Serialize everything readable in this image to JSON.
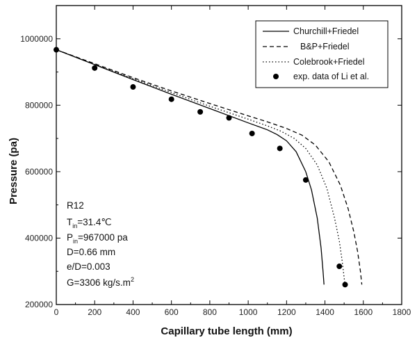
{
  "chart_data": {
    "type": "line",
    "title": "",
    "xlabel": "Capillary tube length (mm)",
    "ylabel": "Pressure (pa)",
    "xlim": [
      0,
      1800
    ],
    "ylim": [
      200000,
      1100000
    ],
    "x_ticks": [
      0,
      200,
      400,
      600,
      800,
      1000,
      1200,
      1400,
      1600,
      1800
    ],
    "y_ticks": [
      200000,
      400000,
      600000,
      800000,
      1000000
    ],
    "x_tick_labels": [
      "0",
      "200",
      "400",
      "600",
      "800",
      "1000",
      "1200",
      "1400",
      "1600",
      "1800"
    ],
    "y_tick_labels": [
      "200000",
      "400000",
      "600000",
      "800000",
      "1000000"
    ],
    "grid": false,
    "legend_position": "top-right",
    "series": [
      {
        "name": "Churchill+Friedel",
        "style": "solid",
        "x": [
          0,
          200,
          400,
          600,
          800,
          1000,
          1100,
          1150,
          1200,
          1250,
          1300,
          1330,
          1360,
          1380,
          1390,
          1395
        ],
        "y": [
          967000,
          922000,
          877000,
          833000,
          790000,
          747000,
          726000,
          712000,
          693000,
          660000,
          600000,
          545000,
          460000,
          370000,
          300000,
          260000
        ]
      },
      {
        "name": "B&P+Friedel",
        "style": "dashed",
        "x": [
          0,
          200,
          400,
          600,
          800,
          1000,
          1100,
          1200,
          1280,
          1350,
          1420,
          1480,
          1520,
          1550,
          1570,
          1585,
          1592
        ],
        "y": [
          967000,
          925000,
          883000,
          843000,
          805000,
          768000,
          750000,
          730000,
          710000,
          680000,
          630000,
          560000,
          490000,
          420000,
          360000,
          300000,
          260000
        ]
      },
      {
        "name": "Colebrook+Friedel",
        "style": "dotted",
        "x": [
          0,
          200,
          400,
          600,
          800,
          1000,
          1100,
          1170,
          1240,
          1300,
          1360,
          1410,
          1450,
          1475,
          1490,
          1500,
          1505
        ],
        "y": [
          967000,
          923000,
          880000,
          838000,
          797000,
          758000,
          738000,
          722000,
          700000,
          670000,
          620000,
          550000,
          460000,
          390000,
          330000,
          280000,
          260000
        ]
      },
      {
        "name": "exp. data of Li et al.",
        "style": "markers",
        "x": [
          0,
          200,
          400,
          600,
          750,
          900,
          1020,
          1165,
          1300,
          1475,
          1505
        ],
        "y": [
          967000,
          912000,
          855000,
          818000,
          780000,
          762000,
          715000,
          670000,
          575000,
          315000,
          260000
        ]
      }
    ],
    "annotations": {
      "fluid": "R12",
      "tin_main": "T",
      "tin_sub": "in",
      "tin_value": "=31.4℃",
      "pin_main": "P",
      "pin_sub": "in",
      "pin_value": "=967000 pa",
      "diameter": "D=0.66 mm",
      "roughness": "e/D=0.003",
      "flux_main": "G=3306 kg/s.m",
      "flux_sup": "2"
    }
  }
}
